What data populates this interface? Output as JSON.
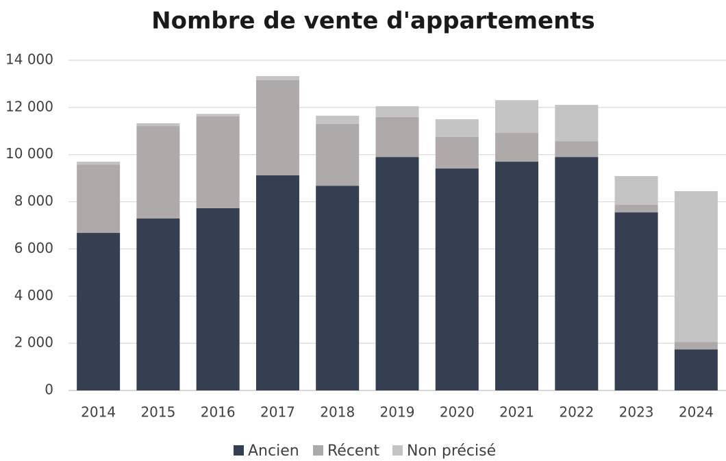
{
  "chart_data": {
    "type": "stacked_bar",
    "title": "Nombre de vente d'appartements",
    "categories": [
      "2014",
      "2015",
      "2016",
      "2017",
      "2018",
      "2019",
      "2020",
      "2021",
      "2022",
      "2023",
      "2024"
    ],
    "series": [
      {
        "name": "Ancien",
        "color": "#353f51",
        "values": [
          6680,
          7290,
          7730,
          9120,
          8680,
          9900,
          9410,
          9700,
          9900,
          7550,
          1740
        ]
      },
      {
        "name": "Récent",
        "color": "#aeaaaa",
        "values": [
          2900,
          3920,
          3890,
          4040,
          2620,
          1690,
          1340,
          1220,
          670,
          320,
          320
        ]
      },
      {
        "name": "Non précisé",
        "color": "#c4c4c4",
        "values": [
          120,
          120,
          110,
          170,
          350,
          460,
          750,
          1390,
          1540,
          1220,
          6390
        ]
      }
    ],
    "ylim": [
      0,
      14000
    ],
    "yticks": [
      0,
      {
        "value": 2000,
        "label": "2 000"
      },
      {
        "value": 4000,
        "label": "4 000"
      },
      {
        "value": 6000,
        "label": "6 000"
      },
      {
        "value": 8000,
        "label": "8 000"
      },
      {
        "value": 10000,
        "label": "10 000"
      },
      {
        "value": 12000,
        "label": "12 000"
      },
      {
        "value": 14000,
        "label": "14 000"
      }
    ],
    "grid": true,
    "legend": "bottom"
  }
}
